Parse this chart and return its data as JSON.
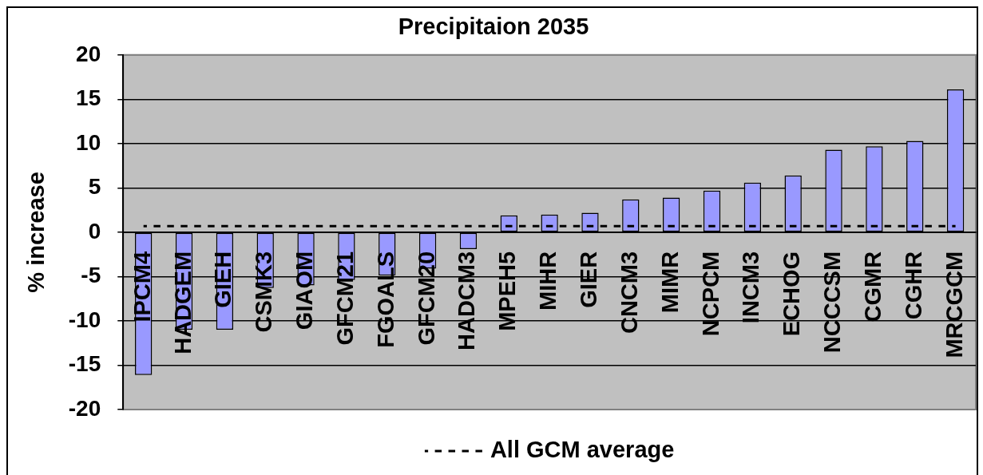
{
  "chart_data": {
    "type": "bar",
    "title": "Precipitaion 2035",
    "ylabel": "% increase",
    "categories": [
      "IPCM4",
      "HADGEM",
      "GIEH",
      "CSMK3",
      "GIAOM",
      "GFCM21",
      "FGOALS",
      "GFCM20",
      "HADCM3",
      "MPEH5",
      "MIHR",
      "GIER",
      "CNCM3",
      "MIMR",
      "NCPCM",
      "INCM3",
      "ECHOG",
      "NCCCSM",
      "CGMR",
      "CGHR",
      "MRCGCM"
    ],
    "series": [
      {
        "color": "#9999ff",
        "values": [
          -16.1,
          -11.0,
          -11.0,
          -6.3,
          -6.0,
          -5.4,
          -4.9,
          -4.1,
          -1.9,
          1.9,
          2.0,
          2.2,
          3.7,
          3.9,
          4.7,
          5.6,
          6.4,
          9.3,
          9.7,
          10.3,
          16.1
        ]
      },
      {
        "type": "line",
        "name": "All GCM average",
        "color": "#000000",
        "line_style": "dashed",
        "marker": "none",
        "values": [
          0.7,
          0.7,
          0.7,
          0.7,
          0.7,
          0.7,
          0.7,
          0.7,
          0.7,
          0.7,
          0.7,
          0.7,
          0.7,
          0.7,
          0.7,
          0.7,
          0.7,
          0.7,
          0.7,
          0.7,
          0.7
        ]
      }
    ],
    "ylim": [
      -20,
      20
    ],
    "yticks": [
      -20,
      -15,
      -10,
      -5,
      0,
      5,
      10,
      15,
      20
    ],
    "grid": "y",
    "legend": "bottom"
  }
}
